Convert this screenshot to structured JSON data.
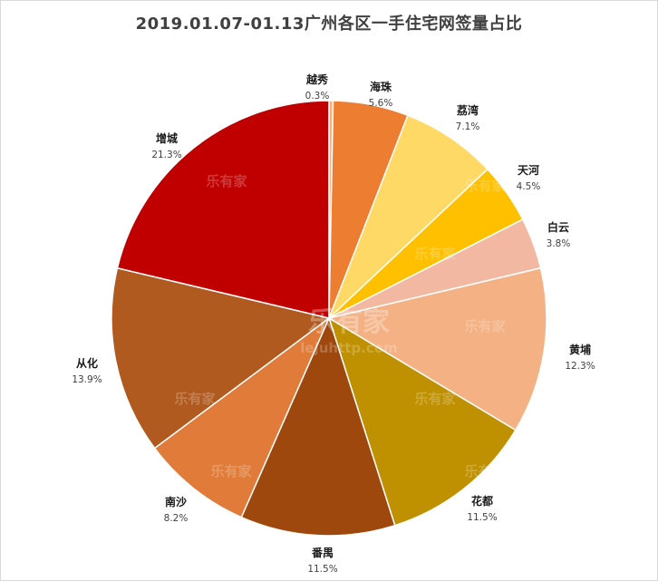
{
  "chart_data": {
    "type": "pie",
    "title": "2019.01.07-01.13广州各区一手住宅网签量占比",
    "slices": [
      {
        "label": "越秀",
        "value": 0.3,
        "value_label": "0.3%",
        "color": "#f4b183"
      },
      {
        "label": "海珠",
        "value": 5.6,
        "value_label": "5.6%",
        "color": "#ed7d31"
      },
      {
        "label": "荔湾",
        "value": 7.1,
        "value_label": "7.1%",
        "color": "#ffd966"
      },
      {
        "label": "天河",
        "value": 4.5,
        "value_label": "4.5%",
        "color": "#ffc000"
      },
      {
        "label": "白云",
        "value": 3.8,
        "value_label": "3.8%",
        "color": "#f2b8a2"
      },
      {
        "label": "黄埔",
        "value": 12.3,
        "value_label": "12.3%",
        "color": "#f4b183"
      },
      {
        "label": "花都",
        "value": 11.5,
        "value_label": "11.5%",
        "color": "#bf9000"
      },
      {
        "label": "番禺",
        "value": 11.5,
        "value_label": "11.5%",
        "color": "#9e480e"
      },
      {
        "label": "南沙",
        "value": 8.2,
        "value_label": "8.2%",
        "color": "#e07b39"
      },
      {
        "label": "从化",
        "value": 13.9,
        "value_label": "13.9%",
        "color": "#b05a1f"
      },
      {
        "label": "增城",
        "value": 21.3,
        "value_label": "21.3%",
        "color": "#c00000"
      }
    ],
    "legend": "none"
  },
  "watermark": {
    "brand": "乐有家",
    "site": "lejuhttp.com"
  }
}
